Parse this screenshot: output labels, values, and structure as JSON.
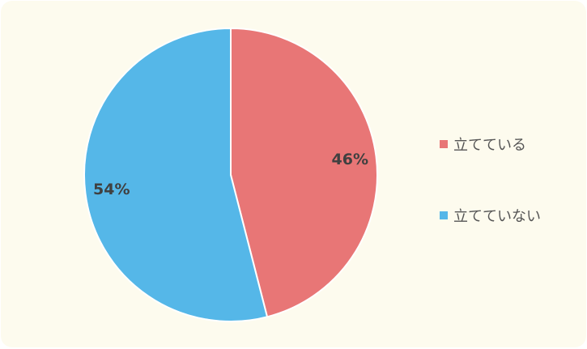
{
  "chart_data": {
    "type": "pie",
    "title": "",
    "series": [
      {
        "name": "立てている",
        "value": 46,
        "label": "46%",
        "color": "#e87676"
      },
      {
        "name": "立てていない",
        "value": 54,
        "label": "54%",
        "color": "#55b7e8"
      }
    ],
    "legend_placement": "right",
    "background_color": "#fdfbee",
    "slice_border_color": "#ffffff"
  }
}
